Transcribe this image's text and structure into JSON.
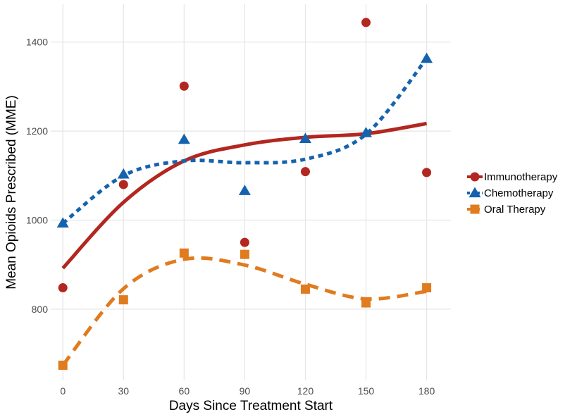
{
  "chart_data": {
    "type": "scatter",
    "title": "",
    "xlabel": "Days Since Treatment Start",
    "ylabel": "Mean Opioids Prescribed (MME)",
    "xlim": [
      -6,
      192
    ],
    "ylim": [
      640,
      1485
    ],
    "xticks": [
      0,
      30,
      60,
      90,
      120,
      150,
      180
    ],
    "yticks": [
      800,
      1000,
      1200,
      1400
    ],
    "grid": true,
    "legend_position": "right",
    "x": [
      0,
      30,
      60,
      90,
      120,
      150,
      180
    ],
    "series": [
      {
        "name": "Immunotherapy",
        "color": "#B2271F",
        "marker": "circle",
        "line_style": "solid",
        "values": [
          848,
          1080,
          1301,
          950,
          1109,
          1444,
          1107
        ],
        "trend": [
          892,
          1040,
          1133,
          1169,
          1186,
          1194,
          1217
        ]
      },
      {
        "name": "Chemotherapy",
        "color": "#1563AE",
        "marker": "triangle",
        "line_style": "dotted",
        "values": [
          993,
          1103,
          1181,
          1066,
          1183,
          1196,
          1363
        ],
        "trend": [
          993,
          1100,
          1133,
          1129,
          1137,
          1193,
          1363
        ]
      },
      {
        "name": "Oral Therapy",
        "color": "#E07B1F",
        "marker": "square",
        "line_style": "dashed",
        "values": [
          674,
          821,
          926,
          923,
          845,
          814,
          848
        ],
        "trend": [
          674,
          846,
          912,
          899,
          856,
          823,
          840
        ]
      }
    ]
  }
}
